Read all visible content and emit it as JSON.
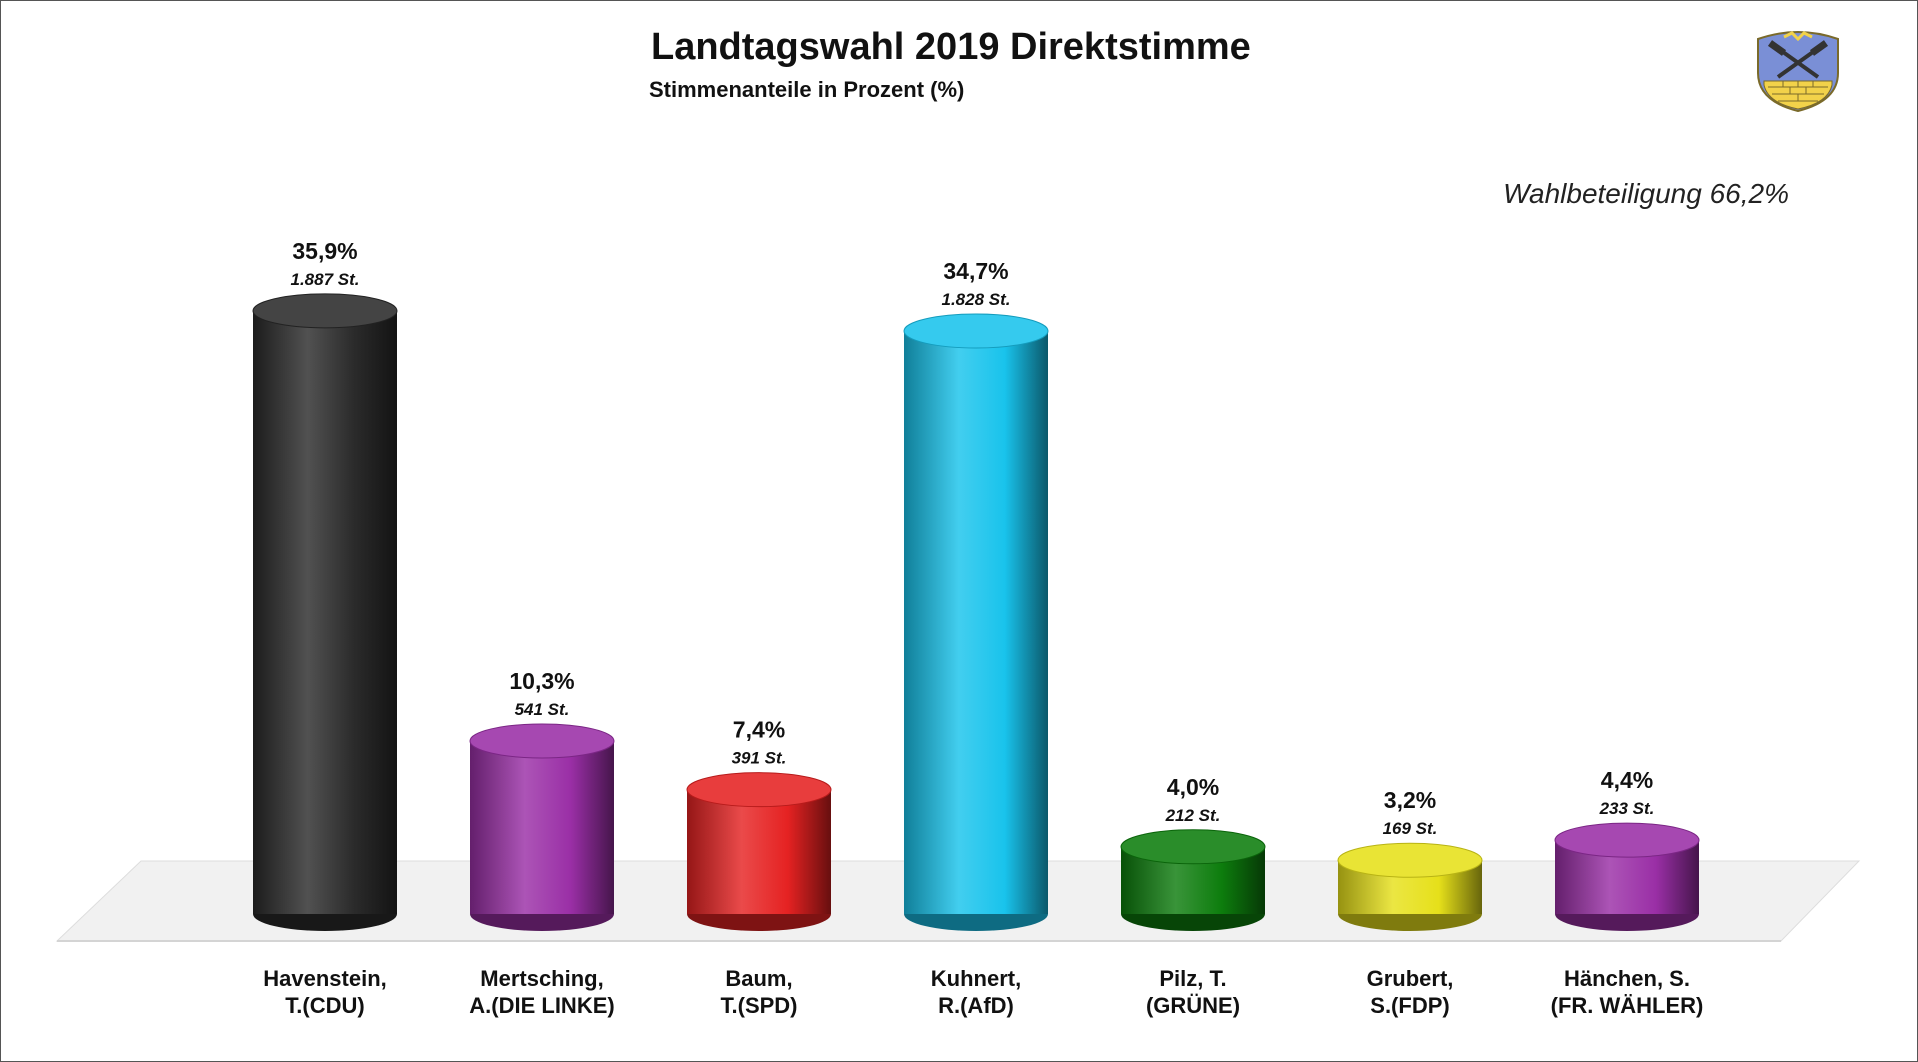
{
  "chart_data": {
    "type": "bar",
    "title": "Landtagswahl 2019 Direktstimme",
    "subtitle": "Stimmenanteile in Prozent (%)",
    "annotation": "Wahlbeteiligung 66,2%",
    "categories": [
      [
        "Havenstein,",
        "T.(CDU)"
      ],
      [
        "Mertsching,",
        "A.(DIE LINKE)"
      ],
      [
        "Baum,",
        "T.(SPD)"
      ],
      [
        "Kuhnert,",
        "R.(AfD)"
      ],
      [
        "Pilz, T.",
        "(GRÜNE)"
      ],
      [
        "Grubert,",
        "S.(FDP)"
      ],
      [
        "Hänchen, S.",
        "(FR. WÄHLER)"
      ]
    ],
    "values": [
      35.9,
      10.3,
      7.4,
      34.7,
      4.0,
      3.2,
      4.4
    ],
    "value_labels": [
      "35,9%",
      "10,3%",
      "7,4%",
      "34,7%",
      "4,0%",
      "3,2%",
      "4,4%"
    ],
    "votes_labels": [
      "1.887 St.",
      "541 St.",
      "391 St.",
      "1.828 St.",
      "212 St.",
      "169 St.",
      "233 St."
    ],
    "colors": [
      "#2b2b2b",
      "#9a2fa6",
      "#e52222",
      "#19c3ec",
      "#0d7d0d",
      "#e6e01a",
      "#9a2fa6"
    ],
    "ylim": [
      0,
      40
    ],
    "grid": false,
    "legend": "none"
  },
  "logo": {
    "icon": "coat-of-arms-icon"
  }
}
